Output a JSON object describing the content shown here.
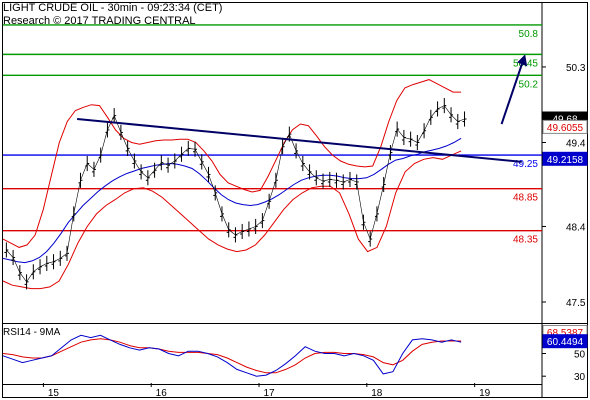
{
  "header": {
    "title": "LIGHT CRUDE OIL - 30min - 09:23:34 (CET)",
    "subtitle": "Research © 2017 TRADING CENTRAL"
  },
  "colors": {
    "price": "#000000",
    "bollinger": "#e00000",
    "moving_average": "#0000cc",
    "resistance": "#009900",
    "pivot": "#0000ee",
    "support": "#dd0000",
    "trendline": "#000066",
    "arrow": "#000066",
    "rsi": "#0000cc",
    "rsi_ma": "#dd0000"
  },
  "chart_data": [
    {
      "type": "line",
      "name": "price-panel",
      "title": "LIGHT CRUDE OIL - 30min - 09:23:34 (CET)",
      "ylim": [
        47.25,
        51.05
      ],
      "y_ticks": [
        47.5,
        48.4,
        49.4,
        50.3
      ],
      "x_ticks": [
        "15",
        "16",
        "17",
        "18",
        "19"
      ],
      "x_tick_positions": [
        6,
        22,
        38,
        54,
        70
      ],
      "n_bars": 80,
      "grid": false,
      "price": [
        48.12,
        48.03,
        47.85,
        47.74,
        47.86,
        47.92,
        47.96,
        47.98,
        48.02,
        48.08,
        48.55,
        48.95,
        49.15,
        49.08,
        49.25,
        49.55,
        49.72,
        49.52,
        49.33,
        49.18,
        49.05,
        48.98,
        49.07,
        49.16,
        49.13,
        49.18,
        49.26,
        49.33,
        49.32,
        49.17,
        49.02,
        48.8,
        48.55,
        48.36,
        48.3,
        48.34,
        48.37,
        48.4,
        48.47,
        48.7,
        48.95,
        49.35,
        49.5,
        49.3,
        49.15,
        49.05,
        48.98,
        48.94,
        48.96,
        48.95,
        48.93,
        48.96,
        48.93,
        48.45,
        48.25,
        48.55,
        48.9,
        49.28,
        49.56,
        49.46,
        49.44,
        49.4,
        49.54,
        49.7,
        49.8,
        49.84,
        49.73,
        49.65,
        49.68
      ],
      "ma": [
        48.02,
        48.0,
        47.98,
        47.97,
        47.99,
        48.03,
        48.1,
        48.2,
        48.32,
        48.45,
        48.55,
        48.65,
        48.73,
        48.81,
        48.88,
        48.94,
        48.99,
        49.03,
        49.06,
        49.09,
        49.11,
        49.13,
        49.14,
        49.15,
        49.14,
        49.12,
        49.09,
        49.03,
        48.95,
        48.86,
        48.78,
        48.72,
        48.68,
        48.66,
        48.65,
        48.66,
        48.69,
        48.73,
        48.78,
        48.84,
        48.9,
        48.95,
        48.98,
        49.0,
        49.01,
        49.01,
        49.0,
        48.98,
        48.97,
        48.97,
        48.98,
        49.02,
        49.08,
        49.14,
        49.19,
        49.21,
        49.24,
        49.26,
        49.29,
        49.31,
        49.33,
        49.36,
        49.4,
        49.45
      ],
      "bollinger_upper": [
        48.25,
        48.2,
        48.15,
        48.18,
        48.3,
        48.6,
        49.0,
        49.4,
        49.65,
        49.78,
        49.82,
        49.85,
        49.84,
        49.7,
        49.55,
        49.45,
        49.4,
        49.38,
        49.4,
        49.42,
        49.43,
        49.43,
        49.44,
        49.44,
        49.4,
        49.3,
        49.18,
        49.02,
        48.92,
        48.88,
        48.84,
        48.81,
        48.83,
        49.0,
        49.2,
        49.4,
        49.55,
        49.62,
        49.6,
        49.48,
        49.35,
        49.25,
        49.18,
        49.14,
        49.12,
        49.11,
        49.12,
        49.35,
        49.65,
        49.9,
        50.05,
        50.09,
        50.12,
        50.15,
        50.1,
        50.05,
        50.0,
        50.0
      ],
      "bollinger_lower": [
        47.75,
        47.7,
        47.68,
        47.66,
        47.66,
        47.68,
        47.75,
        47.95,
        48.2,
        48.4,
        48.55,
        48.65,
        48.72,
        48.8,
        48.85,
        48.86,
        48.82,
        48.75,
        48.65,
        48.55,
        48.45,
        48.35,
        48.25,
        48.18,
        48.13,
        48.1,
        48.12,
        48.18,
        48.3,
        48.45,
        48.6,
        48.72,
        48.8,
        48.86,
        48.88,
        48.88,
        48.8,
        48.55,
        48.25,
        48.1,
        48.15,
        48.4,
        48.8,
        49.05,
        49.15,
        49.2,
        49.22,
        49.2,
        49.25,
        49.3
      ],
      "levels": [
        {
          "label": "50.8",
          "value": 50.8,
          "color": "#009900"
        },
        {
          "label": "50.45",
          "value": 50.45,
          "color": "#009900"
        },
        {
          "label": "50.2",
          "value": 50.2,
          "color": "#009900"
        },
        {
          "label": "49.25",
          "value": 49.25,
          "color": "#0000ee"
        },
        {
          "label": "48.85",
          "value": 48.85,
          "color": "#dd0000"
        },
        {
          "label": "48.35",
          "value": 48.35,
          "color": "#dd0000"
        }
      ],
      "current_value_tags": [
        {
          "label": "49.68",
          "value": 49.68,
          "bg": "#000000",
          "fg": "#ffffff"
        },
        {
          "label": "49.6055",
          "value": 49.58,
          "bg": "#ffffff",
          "fg": "#dd0000"
        },
        {
          "label": "49.2158",
          "value": 49.2,
          "bg": "#0000cc",
          "fg": "#ffffff"
        }
      ],
      "trendline": {
        "from": [
          11,
          49.68
        ],
        "to": [
          77,
          49.17
        ]
      },
      "projection_arrow": {
        "from": [
          74,
          49.62
        ],
        "to": [
          77.5,
          50.45
        ]
      }
    },
    {
      "type": "line",
      "name": "rsi-panel",
      "title": "RSI14 - 9MA",
      "ylim": [
        24,
        76
      ],
      "y_ticks": [
        30,
        50
      ],
      "x_ticks": [
        "15",
        "16",
        "17",
        "18",
        "19"
      ],
      "rsi": [
        48,
        45,
        42,
        44,
        46,
        48,
        55,
        62,
        66,
        64,
        66,
        62,
        58,
        55,
        53,
        55,
        54,
        50,
        48,
        52,
        52,
        50,
        47,
        42,
        36,
        33,
        30,
        31,
        35,
        41,
        48,
        56,
        52,
        50,
        50,
        48,
        50,
        48,
        44,
        32,
        34,
        50,
        62,
        63,
        62,
        60,
        62,
        60
      ],
      "rsi_ma": [
        50,
        49,
        47,
        46,
        46,
        48,
        52,
        56,
        60,
        62,
        63,
        62,
        60,
        57,
        55,
        55,
        54,
        52,
        51,
        51,
        51,
        50,
        49,
        46,
        42,
        38,
        35,
        33,
        33,
        36,
        40,
        46,
        50,
        51,
        51,
        50,
        50,
        49,
        47,
        42,
        40,
        44,
        52,
        58,
        60,
        61,
        61,
        61
      ],
      "current_value_tags": [
        {
          "label": "68.5387",
          "value": 68.5,
          "bg": "#ffffff",
          "fg": "#dd0000"
        },
        {
          "label": "60.4494",
          "value": 60.4,
          "bg": "#0000cc",
          "fg": "#ffffff"
        }
      ]
    }
  ]
}
